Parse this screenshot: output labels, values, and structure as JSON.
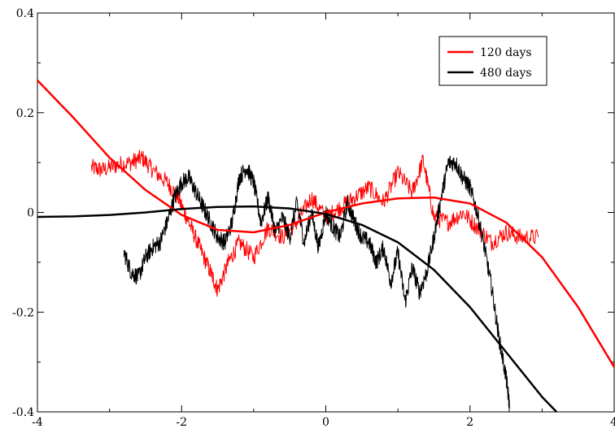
{
  "chart_data": {
    "type": "line",
    "title": "",
    "xlabel": "",
    "ylabel": "",
    "xlim": [
      -4,
      4
    ],
    "ylim": [
      -0.4,
      0.4
    ],
    "x_ticks": [
      -4,
      -2,
      0,
      2,
      4
    ],
    "x_tick_labels": [
      "-4",
      "-2",
      "0",
      "2",
      "4"
    ],
    "y_ticks": [
      -0.4,
      -0.2,
      0,
      0.2,
      0.4
    ],
    "y_tick_labels": [
      "-0.4",
      "-0.2",
      "0",
      "0.2",
      "0.4"
    ],
    "grid": false,
    "legend": {
      "position": "top-right",
      "entries": [
        {
          "label": "120 days",
          "color": "#ff0000"
        },
        {
          "label": "480 days",
          "color": "#000000"
        }
      ]
    },
    "series": [
      {
        "name": "120 days",
        "kind": "noisy",
        "color": "#ff0000",
        "x": [
          -3.25,
          -3.1,
          -2.9,
          -2.7,
          -2.55,
          -2.4,
          -2.2,
          -2.05,
          -1.9,
          -1.75,
          -1.6,
          -1.5,
          -1.35,
          -1.2,
          -1.0,
          -0.8,
          -0.6,
          -0.4,
          -0.2,
          0.0,
          0.2,
          0.4,
          0.6,
          0.8,
          1.0,
          1.2,
          1.35,
          1.5,
          1.7,
          1.9,
          2.1,
          2.3,
          2.5,
          2.7,
          2.95
        ],
        "y": [
          0.09,
          0.085,
          0.095,
          0.1,
          0.11,
          0.085,
          0.06,
          0.03,
          -0.02,
          -0.07,
          -0.12,
          -0.155,
          -0.1,
          -0.06,
          -0.09,
          -0.03,
          -0.05,
          -0.02,
          0.03,
          -0.01,
          0.01,
          0.03,
          0.05,
          0.02,
          0.08,
          0.04,
          0.105,
          -0.01,
          -0.02,
          0.0,
          -0.03,
          -0.06,
          -0.04,
          -0.05,
          -0.05
        ]
      },
      {
        "name": "480 days",
        "kind": "noisy",
        "color": "#000000",
        "x": [
          -2.8,
          -2.7,
          -2.6,
          -2.5,
          -2.4,
          -2.3,
          -2.2,
          -2.1,
          -2.0,
          -1.9,
          -1.8,
          -1.7,
          -1.6,
          -1.5,
          -1.4,
          -1.3,
          -1.2,
          -1.1,
          -1.0,
          -0.9,
          -0.8,
          -0.7,
          -0.6,
          -0.5,
          -0.4,
          -0.3,
          -0.2,
          -0.1,
          0.0,
          0.1,
          0.2,
          0.3,
          0.4,
          0.5,
          0.6,
          0.7,
          0.8,
          0.9,
          1.0,
          1.1,
          1.2,
          1.3,
          1.4,
          1.5,
          1.6,
          1.7,
          1.8,
          1.9,
          2.0,
          2.1,
          2.2,
          2.3,
          2.4,
          2.5,
          2.55
        ],
        "y": [
          -0.08,
          -0.12,
          -0.13,
          -0.09,
          -0.07,
          -0.06,
          -0.02,
          0.03,
          0.06,
          0.07,
          0.04,
          0.01,
          -0.02,
          -0.05,
          -0.06,
          -0.02,
          0.07,
          0.09,
          0.06,
          -0.02,
          0.03,
          -0.04,
          -0.01,
          -0.05,
          0.02,
          -0.06,
          0.0,
          -0.07,
          0.0,
          -0.03,
          -0.05,
          0.02,
          -0.02,
          -0.05,
          -0.06,
          -0.1,
          -0.07,
          -0.14,
          -0.08,
          -0.18,
          -0.11,
          -0.16,
          -0.12,
          -0.05,
          0.03,
          0.1,
          0.1,
          0.07,
          0.05,
          0.0,
          -0.07,
          -0.15,
          -0.25,
          -0.33,
          -0.39
        ]
      },
      {
        "name": "120 days",
        "kind": "fit",
        "color": "#ff0000",
        "x": [
          -4.0,
          -3.5,
          -3.0,
          -2.5,
          -2.0,
          -1.5,
          -1.0,
          -0.5,
          0.0,
          0.5,
          1.0,
          1.5,
          2.0,
          2.5,
          3.0,
          3.5,
          4.0
        ],
        "y": [
          0.265,
          0.19,
          0.11,
          0.045,
          -0.005,
          -0.035,
          -0.04,
          -0.025,
          0.0,
          0.018,
          0.028,
          0.03,
          0.018,
          -0.02,
          -0.09,
          -0.19,
          -0.31
        ]
      },
      {
        "name": "480 days",
        "kind": "fit",
        "color": "#000000",
        "x": [
          -4.0,
          -3.5,
          -3.0,
          -2.5,
          -2.0,
          -1.5,
          -1.0,
          -0.5,
          0.0,
          0.5,
          1.0,
          1.5,
          2.0,
          2.5,
          3.0,
          3.2
        ],
        "y": [
          -0.009,
          -0.008,
          -0.005,
          0.0,
          0.007,
          0.011,
          0.012,
          0.008,
          -0.003,
          -0.025,
          -0.06,
          -0.115,
          -0.19,
          -0.28,
          -0.37,
          -0.4
        ]
      }
    ]
  }
}
